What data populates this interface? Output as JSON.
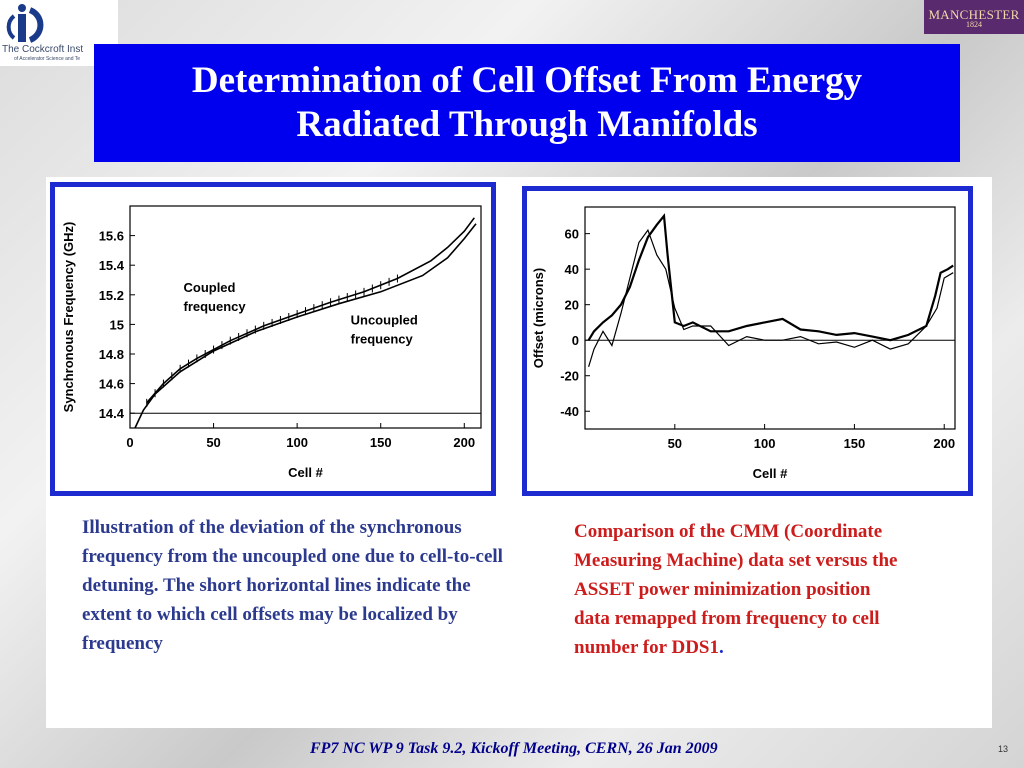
{
  "logos": {
    "left_text": "The Cockcroft Inst",
    "left_subtext": "of Accelerator Science and Te",
    "right_name": "MANCHESTER",
    "right_year": "1824"
  },
  "title": {
    "line1": "Determination of Cell Offset From Energy",
    "line2": "Radiated Through Manifolds"
  },
  "captions": {
    "left": "Illustration of the deviation of the synchronous frequency from the uncoupled one due to cell-to-cell detuning. The short horizontal lines indicate the extent to which cell offsets may be localized by frequency",
    "right": "Comparison of the CMM (Coordinate Measuring Machine) data set versus the ASSET power minimization position data remapped from frequency to cell number for DDS1",
    "right_period": "."
  },
  "footer": {
    "text": "FP7 NC WP 9 Task 9.2, Kickoff Meeting,  CERN, 26 Jan 2009",
    "page_number": "13"
  },
  "colors": {
    "title_bg": "#0000ee",
    "frame": "#1c2ad0",
    "caption_left": "#2c3a8e",
    "caption_right": "#cc1c1c",
    "footer": "#00008b"
  },
  "chart_data": [
    {
      "type": "line",
      "xlabel": "Cell #",
      "ylabel": "Synchronous Frequency (GHz)",
      "xlim": [
        0,
        210
      ],
      "ylim": [
        14.3,
        15.8
      ],
      "xticks": [
        0,
        50,
        100,
        150,
        200
      ],
      "yticks": [
        14.4,
        14.6,
        14.8,
        15,
        15.2,
        15.4,
        15.6
      ],
      "annotations": [
        {
          "text": "Coupled",
          "line2": "frequency"
        },
        {
          "text": "Uncoupled",
          "line2": "frequency"
        }
      ],
      "reference_line_y": 14.4,
      "series": [
        {
          "label": "coupled",
          "x": [
            10,
            20,
            30,
            40,
            60,
            80,
            100,
            120,
            140,
            160,
            180,
            190,
            200,
            206
          ],
          "y": [
            14.47,
            14.6,
            14.7,
            14.77,
            14.89,
            14.99,
            15.07,
            15.15,
            15.22,
            15.31,
            15.43,
            15.52,
            15.63,
            15.72
          ]
        },
        {
          "label": "uncoupled",
          "x": [
            3,
            8,
            15,
            30,
            50,
            75,
            100,
            125,
            150,
            175,
            190,
            200,
            207
          ],
          "y": [
            14.3,
            14.42,
            14.53,
            14.68,
            14.82,
            14.95,
            15.05,
            15.14,
            15.22,
            15.33,
            15.45,
            15.58,
            15.68
          ]
        }
      ],
      "error_bar_x": [
        10,
        15,
        20,
        25,
        30,
        35,
        40,
        45,
        50,
        55,
        60,
        65,
        70,
        75,
        80,
        85,
        90,
        95,
        100,
        105,
        110,
        115,
        120,
        125,
        130,
        135,
        140,
        145,
        150,
        155,
        160
      ]
    },
    {
      "type": "line",
      "xlabel": "Cell #",
      "ylabel": "Offset (microns)",
      "xlim": [
        0,
        206
      ],
      "ylim": [
        -50,
        75
      ],
      "xticks": [
        50,
        100,
        150,
        200
      ],
      "yticks": [
        -40,
        -20,
        0,
        20,
        40,
        60
      ],
      "reference_line_y": 0,
      "series": [
        {
          "label": "CMM",
          "x": [
            2,
            5,
            10,
            15,
            20,
            25,
            30,
            35,
            40,
            44,
            46,
            50,
            55,
            60,
            70,
            80,
            90,
            100,
            110,
            120,
            130,
            140,
            150,
            160,
            170,
            180,
            190,
            195,
            198,
            202,
            205
          ],
          "y": [
            0,
            5,
            10,
            14,
            20,
            30,
            45,
            58,
            65,
            70,
            48,
            10,
            8,
            10,
            5,
            5,
            8,
            10,
            12,
            6,
            5,
            3,
            4,
            2,
            0,
            3,
            8,
            25,
            38,
            40,
            42
          ]
        },
        {
          "label": "ASSET",
          "x": [
            2,
            5,
            10,
            15,
            20,
            25,
            30,
            35,
            40,
            45,
            50,
            55,
            60,
            70,
            80,
            90,
            100,
            110,
            120,
            130,
            140,
            150,
            160,
            170,
            180,
            190,
            196,
            200,
            205
          ],
          "y": [
            -15,
            -5,
            5,
            -3,
            15,
            35,
            55,
            62,
            48,
            40,
            18,
            6,
            8,
            8,
            -3,
            2,
            0,
            0,
            2,
            -2,
            -1,
            -4,
            0,
            -5,
            -2,
            8,
            18,
            35,
            38
          ]
        }
      ]
    }
  ]
}
